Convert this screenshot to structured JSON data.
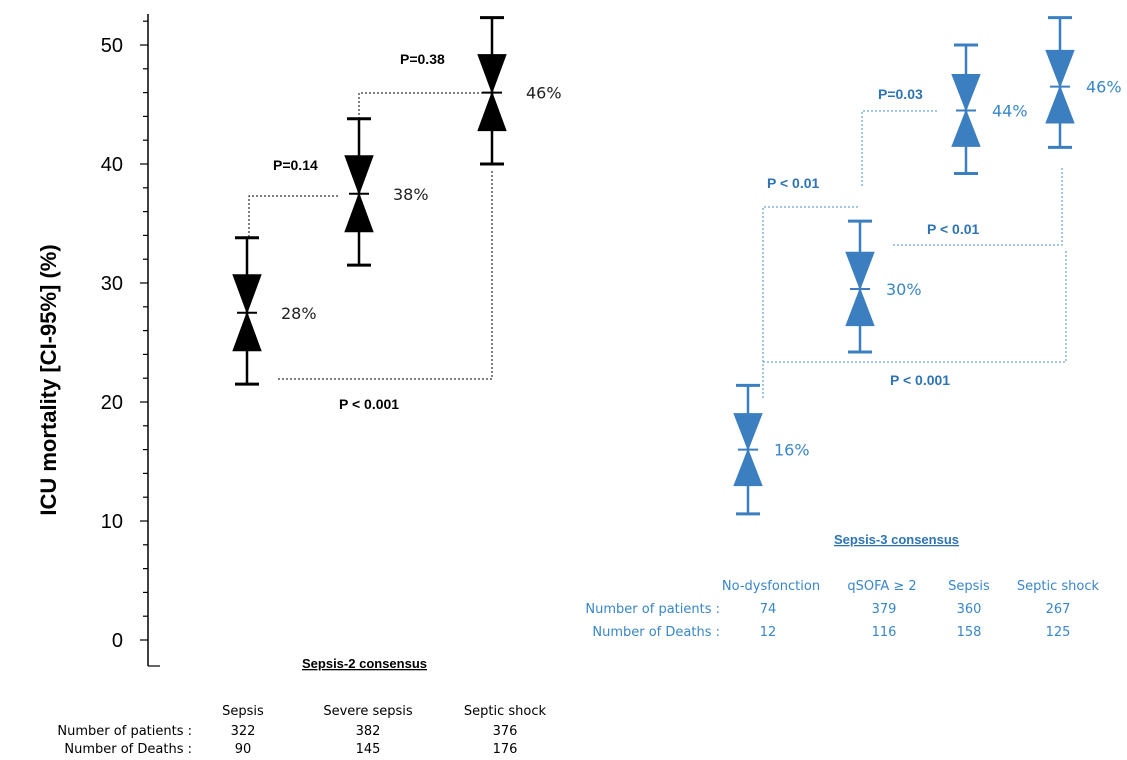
{
  "chart_data": {
    "type": "error-bar",
    "ylabel": "ICU mortality [CI-95%] (%)",
    "ylim": [
      0,
      52
    ],
    "yticks": [
      "0",
      "10",
      "20",
      "30",
      "40",
      "50"
    ],
    "colors": {
      "sepsis2": "#000000",
      "sepsis3": "#3c7fc0",
      "sepsis3_text": "#3a86c8",
      "sepsis3_pvalue": "#2e74b5"
    },
    "sepsis2": {
      "consensus_label": "Sepsis-2 consensus",
      "categories": [
        "Sepsis",
        "Severe sepsis",
        "Septic shock"
      ],
      "values": [
        27.5,
        37.5,
        46
      ],
      "ci_low": [
        21.5,
        31.5,
        40
      ],
      "ci_high": [
        33.8,
        43.8,
        52.3
      ],
      "value_labels": [
        "28%",
        "38%",
        "46%"
      ],
      "patients": [
        "322",
        "382",
        "376"
      ],
      "deaths": [
        "90",
        "145",
        "176"
      ],
      "patients_label": "Number of patients :",
      "deaths_label": "Number of  Deaths :",
      "p_values": [
        "P=0.14",
        "P=0.38",
        "P < 0.001"
      ]
    },
    "sepsis3": {
      "consensus_label": "Sepsis-3 consensus",
      "categories": [
        "No-dysfonction",
        "qSOFA ≥ 2",
        "Sepsis",
        "Septic shock"
      ],
      "values": [
        16,
        29.5,
        44.5,
        46.5
      ],
      "ci_low": [
        10.6,
        24.2,
        39.2,
        41.4
      ],
      "ci_high": [
        21.4,
        35.2,
        50,
        52.3
      ],
      "value_labels": [
        "16%",
        "30%",
        "44%",
        "46%"
      ],
      "patients": [
        "74",
        "379",
        "360",
        "267"
      ],
      "deaths": [
        "12",
        "116",
        "158",
        "125"
      ],
      "patients_label": "Number of patients :",
      "deaths_label": "Number of  Deaths :",
      "p_values": [
        "P < 0.01",
        "P=0.03",
        "P < 0.01",
        "P < 0.001"
      ]
    }
  }
}
